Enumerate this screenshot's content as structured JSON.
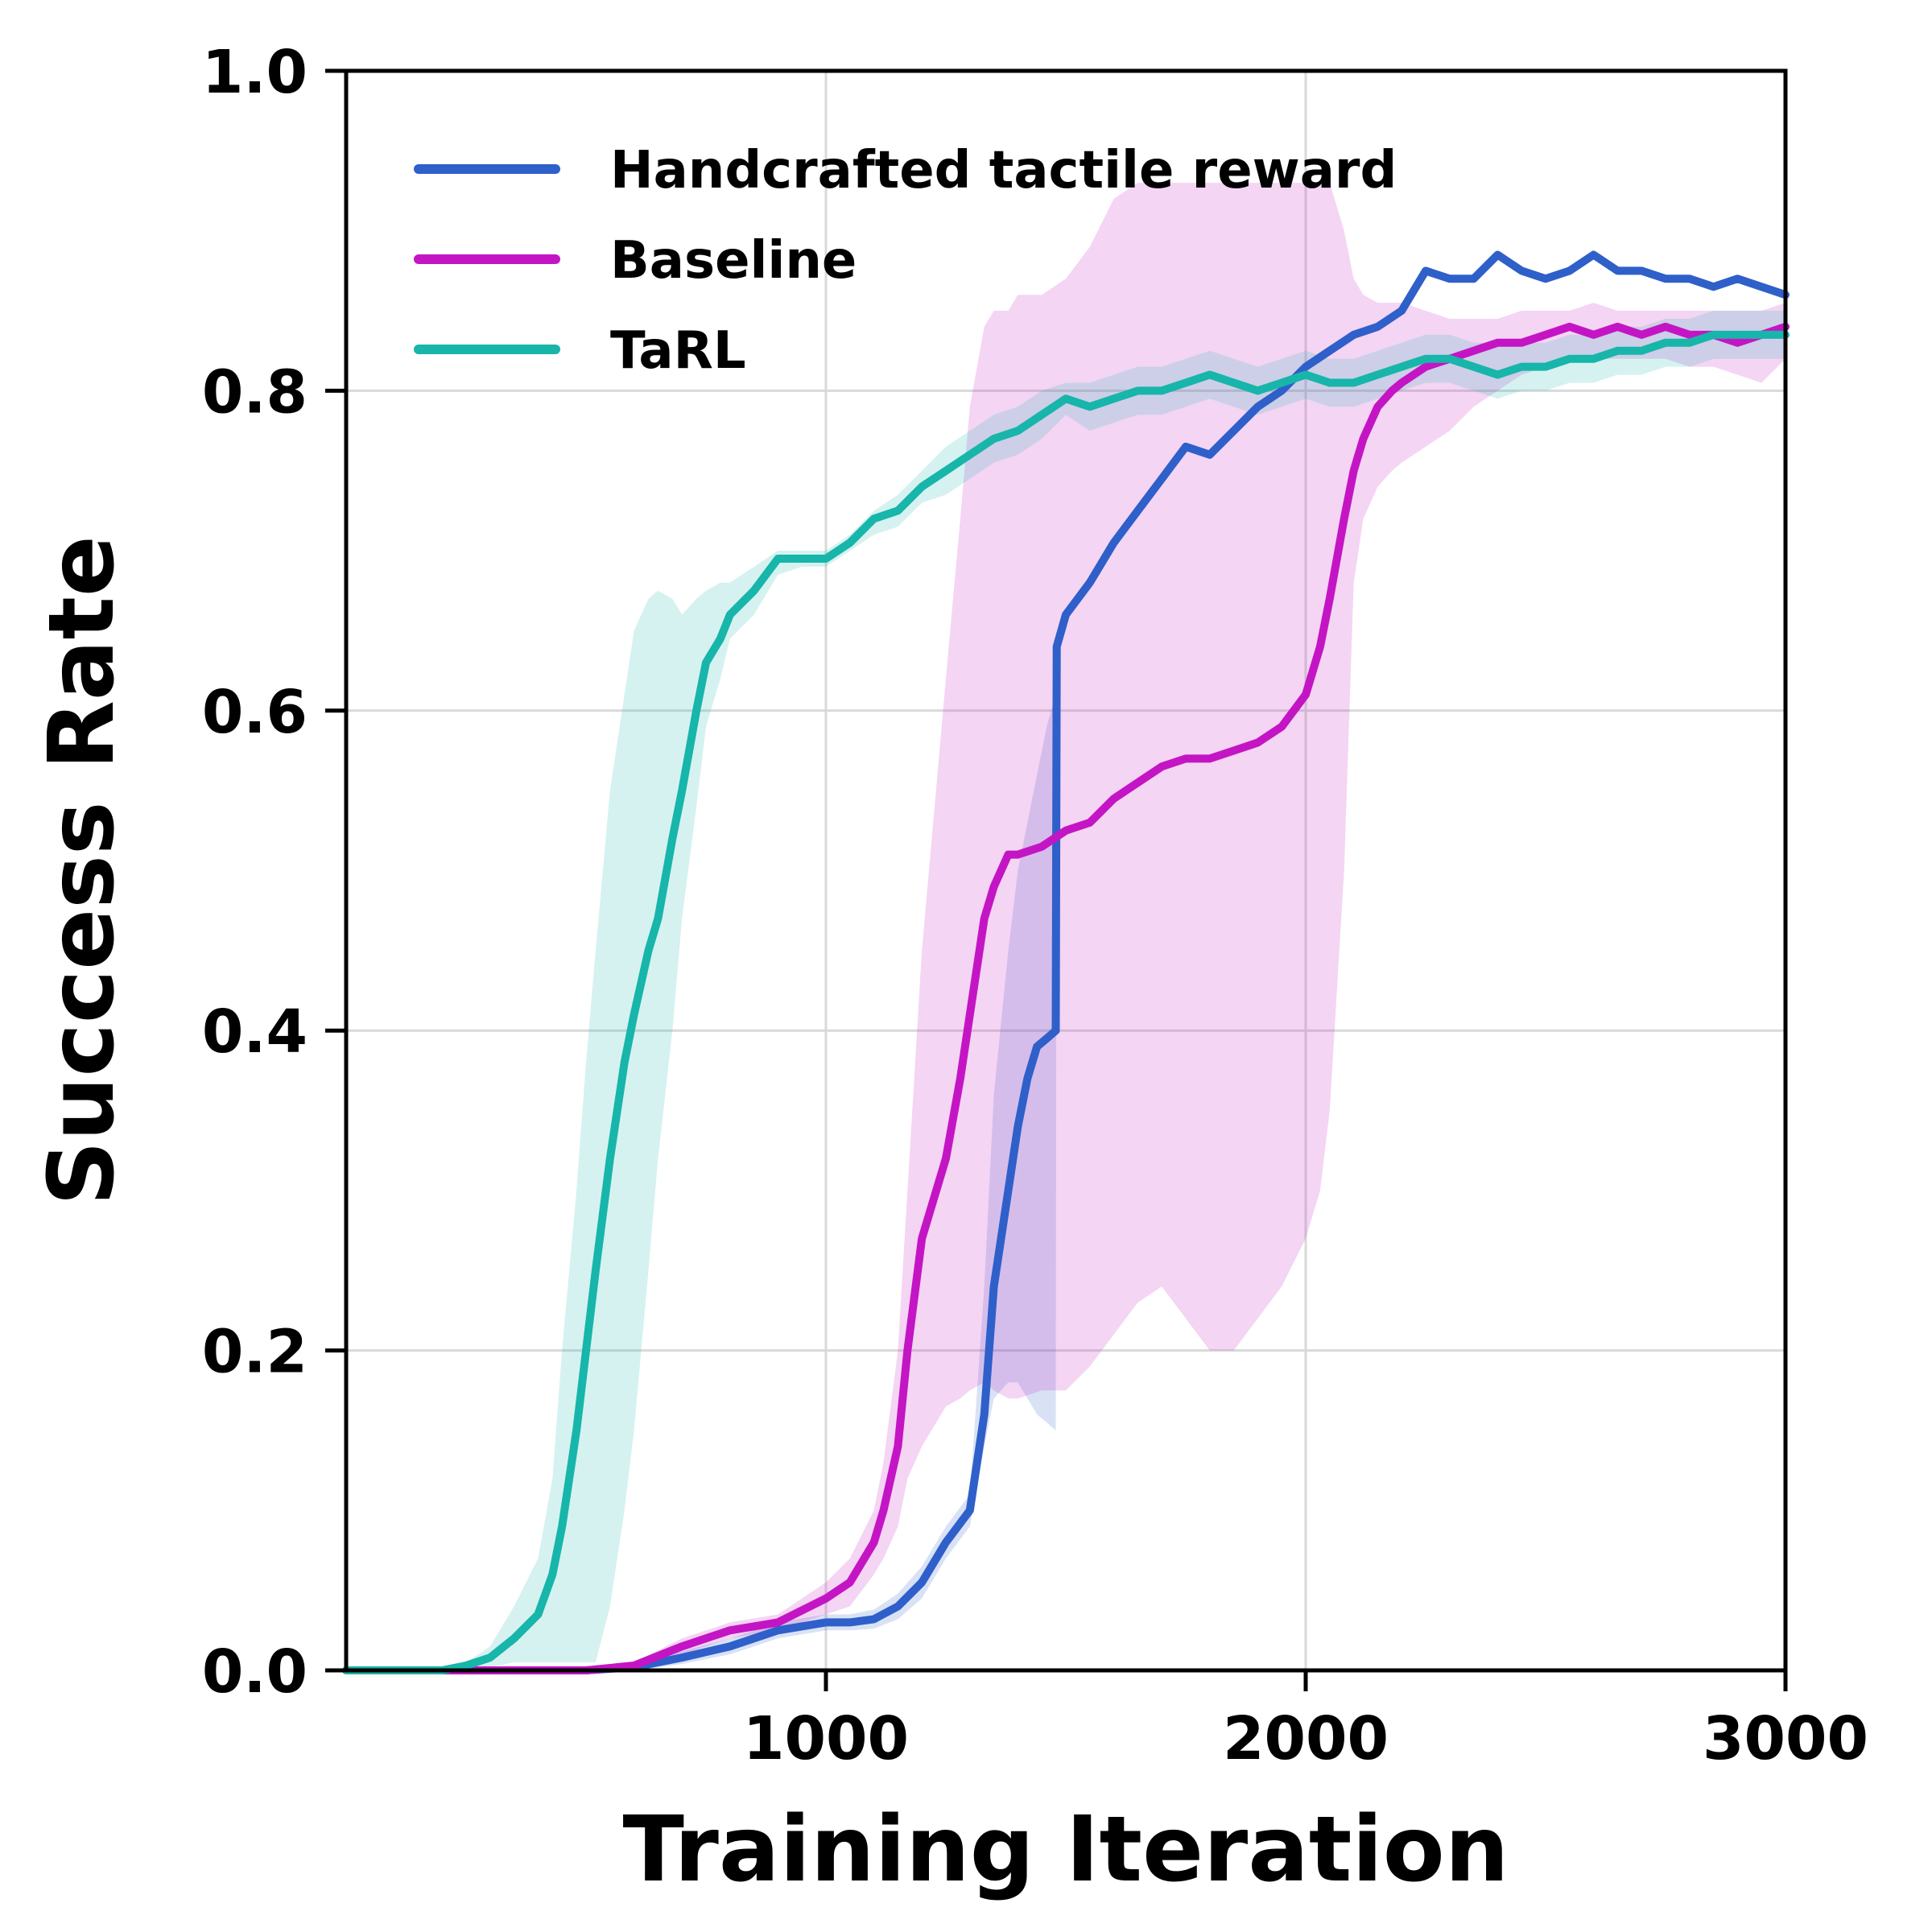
{
  "chart_data": {
    "type": "line",
    "title": "",
    "xlabel": "Training Iteration",
    "ylabel": "Success Rate",
    "xlim": [
      0,
      3000
    ],
    "ylim": [
      0,
      1.0
    ],
    "x_ticks": [
      1000,
      2000,
      3000
    ],
    "x_tick_labels": [
      "1000",
      "2000",
      "3000"
    ],
    "y_ticks": [
      0.0,
      0.2,
      0.4,
      0.6,
      0.8,
      1.0
    ],
    "y_tick_labels": [
      "0.0",
      "0.2",
      "0.4",
      "0.6",
      "0.8",
      "1.0"
    ],
    "grid": true,
    "legend_position": "top-left",
    "series": [
      {
        "name": "Handcrafted tactile reward",
        "color": "#2f5fc9",
        "x": [
          0,
          500,
          600,
          700,
          800,
          900,
          1000,
          1050,
          1100,
          1150,
          1200,
          1250,
          1300,
          1330,
          1350,
          1380,
          1400,
          1420,
          1440,
          1460,
          1479,
          1481,
          1500,
          1550,
          1600,
          1650,
          1700,
          1750,
          1800,
          1850,
          1900,
          1950,
          2000,
          2050,
          2100,
          2150,
          2200,
          2250,
          2300,
          2350,
          2400,
          2450,
          2500,
          2550,
          2600,
          2650,
          2700,
          2750,
          2800,
          2850,
          2900,
          2950,
          3000
        ],
        "y": [
          0.0,
          0.0,
          0.002,
          0.008,
          0.015,
          0.025,
          0.03,
          0.03,
          0.032,
          0.04,
          0.055,
          0.08,
          0.1,
          0.16,
          0.24,
          0.3,
          0.34,
          0.37,
          0.39,
          0.395,
          0.4,
          0.64,
          0.66,
          0.68,
          0.705,
          0.725,
          0.745,
          0.765,
          0.76,
          0.775,
          0.79,
          0.8,
          0.815,
          0.825,
          0.835,
          0.84,
          0.85,
          0.875,
          0.87,
          0.87,
          0.885,
          0.875,
          0.87,
          0.875,
          0.885,
          0.875,
          0.875,
          0.87,
          0.87,
          0.865,
          0.87,
          0.865,
          0.86
        ],
        "upper": [
          0.0,
          0.0,
          0.004,
          0.012,
          0.02,
          0.03,
          0.035,
          0.035,
          0.038,
          0.048,
          0.065,
          0.09,
          0.11,
          0.24,
          0.36,
          0.45,
          0.5,
          0.53,
          0.56,
          0.59,
          0.61,
          0.64,
          0.66,
          0.68,
          0.705,
          0.725,
          0.745,
          0.765,
          0.76,
          0.775,
          0.79,
          0.8,
          0.815,
          0.825,
          0.835,
          0.84,
          0.85,
          0.875,
          0.87,
          0.87,
          0.885,
          0.875,
          0.87,
          0.875,
          0.885,
          0.875,
          0.875,
          0.87,
          0.87,
          0.865,
          0.87,
          0.865,
          0.86
        ],
        "lower": [
          0.0,
          0.0,
          0.0,
          0.004,
          0.01,
          0.02,
          0.025,
          0.025,
          0.026,
          0.032,
          0.045,
          0.07,
          0.09,
          0.14,
          0.17,
          0.18,
          0.18,
          0.17,
          0.16,
          0.155,
          0.15,
          0.64,
          0.66,
          0.68,
          0.705,
          0.725,
          0.745,
          0.765,
          0.76,
          0.775,
          0.79,
          0.8,
          0.815,
          0.825,
          0.835,
          0.84,
          0.85,
          0.875,
          0.87,
          0.87,
          0.885,
          0.875,
          0.87,
          0.875,
          0.885,
          0.875,
          0.875,
          0.87,
          0.87,
          0.865,
          0.87,
          0.865,
          0.86
        ]
      },
      {
        "name": "Baseline",
        "color": "#c415c4",
        "x": [
          0,
          500,
          600,
          700,
          800,
          900,
          1000,
          1050,
          1100,
          1120,
          1150,
          1170,
          1200,
          1250,
          1280,
          1300,
          1330,
          1350,
          1380,
          1400,
          1450,
          1500,
          1550,
          1600,
          1650,
          1700,
          1750,
          1800,
          1850,
          1900,
          1950,
          2000,
          2030,
          2050,
          2080,
          2100,
          2120,
          2150,
          2180,
          2200,
          2250,
          2300,
          2350,
          2400,
          2450,
          2500,
          2550,
          2600,
          2650,
          2700,
          2750,
          2800,
          2850,
          2900,
          2950,
          3000
        ],
        "y": [
          0.0,
          0.0,
          0.003,
          0.015,
          0.025,
          0.03,
          0.045,
          0.055,
          0.08,
          0.1,
          0.14,
          0.2,
          0.27,
          0.32,
          0.37,
          0.41,
          0.47,
          0.49,
          0.51,
          0.51,
          0.515,
          0.525,
          0.53,
          0.545,
          0.555,
          0.565,
          0.57,
          0.57,
          0.575,
          0.58,
          0.59,
          0.61,
          0.64,
          0.67,
          0.72,
          0.75,
          0.77,
          0.79,
          0.8,
          0.805,
          0.815,
          0.82,
          0.825,
          0.83,
          0.83,
          0.835,
          0.84,
          0.835,
          0.84,
          0.835,
          0.84,
          0.835,
          0.835,
          0.83,
          0.835,
          0.84
        ],
        "upper": [
          0.0,
          0.0,
          0.005,
          0.02,
          0.03,
          0.035,
          0.055,
          0.07,
          0.1,
          0.13,
          0.2,
          0.3,
          0.45,
          0.62,
          0.72,
          0.79,
          0.84,
          0.85,
          0.85,
          0.86,
          0.86,
          0.87,
          0.89,
          0.92,
          0.93,
          0.93,
          0.93,
          0.93,
          0.93,
          0.93,
          0.93,
          0.93,
          0.93,
          0.93,
          0.9,
          0.87,
          0.86,
          0.855,
          0.855,
          0.855,
          0.85,
          0.845,
          0.845,
          0.845,
          0.85,
          0.85,
          0.85,
          0.855,
          0.85,
          0.85,
          0.85,
          0.85,
          0.85,
          0.85,
          0.85,
          0.855
        ],
        "lower": [
          0.0,
          0.0,
          0.001,
          0.01,
          0.02,
          0.025,
          0.035,
          0.04,
          0.06,
          0.07,
          0.09,
          0.12,
          0.14,
          0.165,
          0.17,
          0.175,
          0.18,
          0.175,
          0.17,
          0.17,
          0.175,
          0.175,
          0.19,
          0.21,
          0.23,
          0.24,
          0.22,
          0.2,
          0.2,
          0.22,
          0.24,
          0.27,
          0.3,
          0.35,
          0.5,
          0.68,
          0.72,
          0.74,
          0.75,
          0.755,
          0.765,
          0.775,
          0.79,
          0.8,
          0.81,
          0.815,
          0.82,
          0.82,
          0.82,
          0.82,
          0.82,
          0.815,
          0.815,
          0.81,
          0.805,
          0.82
        ]
      },
      {
        "name": "TaRL",
        "color": "#17b5aa",
        "x": [
          0,
          100,
          200,
          250,
          300,
          350,
          400,
          430,
          450,
          480,
          500,
          520,
          550,
          580,
          600,
          630,
          650,
          680,
          700,
          730,
          750,
          780,
          800,
          850,
          900,
          950,
          1000,
          1050,
          1100,
          1150,
          1200,
          1250,
          1300,
          1350,
          1400,
          1450,
          1500,
          1550,
          1600,
          1650,
          1700,
          1750,
          1800,
          1850,
          1900,
          1950,
          2000,
          2050,
          2100,
          2150,
          2200,
          2250,
          2300,
          2350,
          2400,
          2450,
          2500,
          2550,
          2600,
          2650,
          2700,
          2750,
          2800,
          2850,
          2900,
          2950,
          3000
        ],
        "y": [
          0.0,
          0.0,
          0.0,
          0.003,
          0.008,
          0.02,
          0.035,
          0.06,
          0.09,
          0.15,
          0.2,
          0.25,
          0.32,
          0.38,
          0.41,
          0.45,
          0.47,
          0.52,
          0.55,
          0.6,
          0.63,
          0.645,
          0.66,
          0.675,
          0.695,
          0.695,
          0.695,
          0.705,
          0.72,
          0.725,
          0.74,
          0.75,
          0.76,
          0.77,
          0.775,
          0.785,
          0.795,
          0.79,
          0.795,
          0.8,
          0.8,
          0.805,
          0.81,
          0.805,
          0.8,
          0.805,
          0.81,
          0.805,
          0.805,
          0.81,
          0.815,
          0.82,
          0.82,
          0.815,
          0.81,
          0.815,
          0.815,
          0.82,
          0.82,
          0.825,
          0.825,
          0.83,
          0.83,
          0.835,
          0.835,
          0.835,
          0.835
        ],
        "upper": [
          0.0,
          0.0,
          0.0,
          0.005,
          0.015,
          0.04,
          0.07,
          0.12,
          0.2,
          0.3,
          0.38,
          0.45,
          0.55,
          0.61,
          0.65,
          0.67,
          0.675,
          0.67,
          0.66,
          0.67,
          0.675,
          0.68,
          0.68,
          0.69,
          0.7,
          0.7,
          0.7,
          0.71,
          0.725,
          0.735,
          0.75,
          0.765,
          0.775,
          0.785,
          0.79,
          0.8,
          0.805,
          0.805,
          0.81,
          0.815,
          0.815,
          0.82,
          0.825,
          0.82,
          0.815,
          0.82,
          0.825,
          0.82,
          0.82,
          0.825,
          0.83,
          0.835,
          0.835,
          0.83,
          0.83,
          0.83,
          0.83,
          0.835,
          0.835,
          0.84,
          0.84,
          0.845,
          0.845,
          0.85,
          0.85,
          0.85,
          0.85
        ],
        "lower": [
          0.0,
          0.0,
          0.0,
          0.0,
          0.002,
          0.005,
          0.005,
          0.005,
          0.005,
          0.005,
          0.005,
          0.005,
          0.04,
          0.1,
          0.15,
          0.25,
          0.32,
          0.4,
          0.47,
          0.54,
          0.59,
          0.62,
          0.645,
          0.66,
          0.685,
          0.69,
          0.69,
          0.7,
          0.71,
          0.715,
          0.73,
          0.735,
          0.745,
          0.755,
          0.76,
          0.77,
          0.785,
          0.775,
          0.78,
          0.785,
          0.785,
          0.79,
          0.795,
          0.79,
          0.785,
          0.79,
          0.795,
          0.79,
          0.79,
          0.795,
          0.8,
          0.805,
          0.805,
          0.8,
          0.795,
          0.8,
          0.8,
          0.805,
          0.805,
          0.81,
          0.81,
          0.815,
          0.815,
          0.82,
          0.82,
          0.82,
          0.82
        ]
      }
    ]
  }
}
